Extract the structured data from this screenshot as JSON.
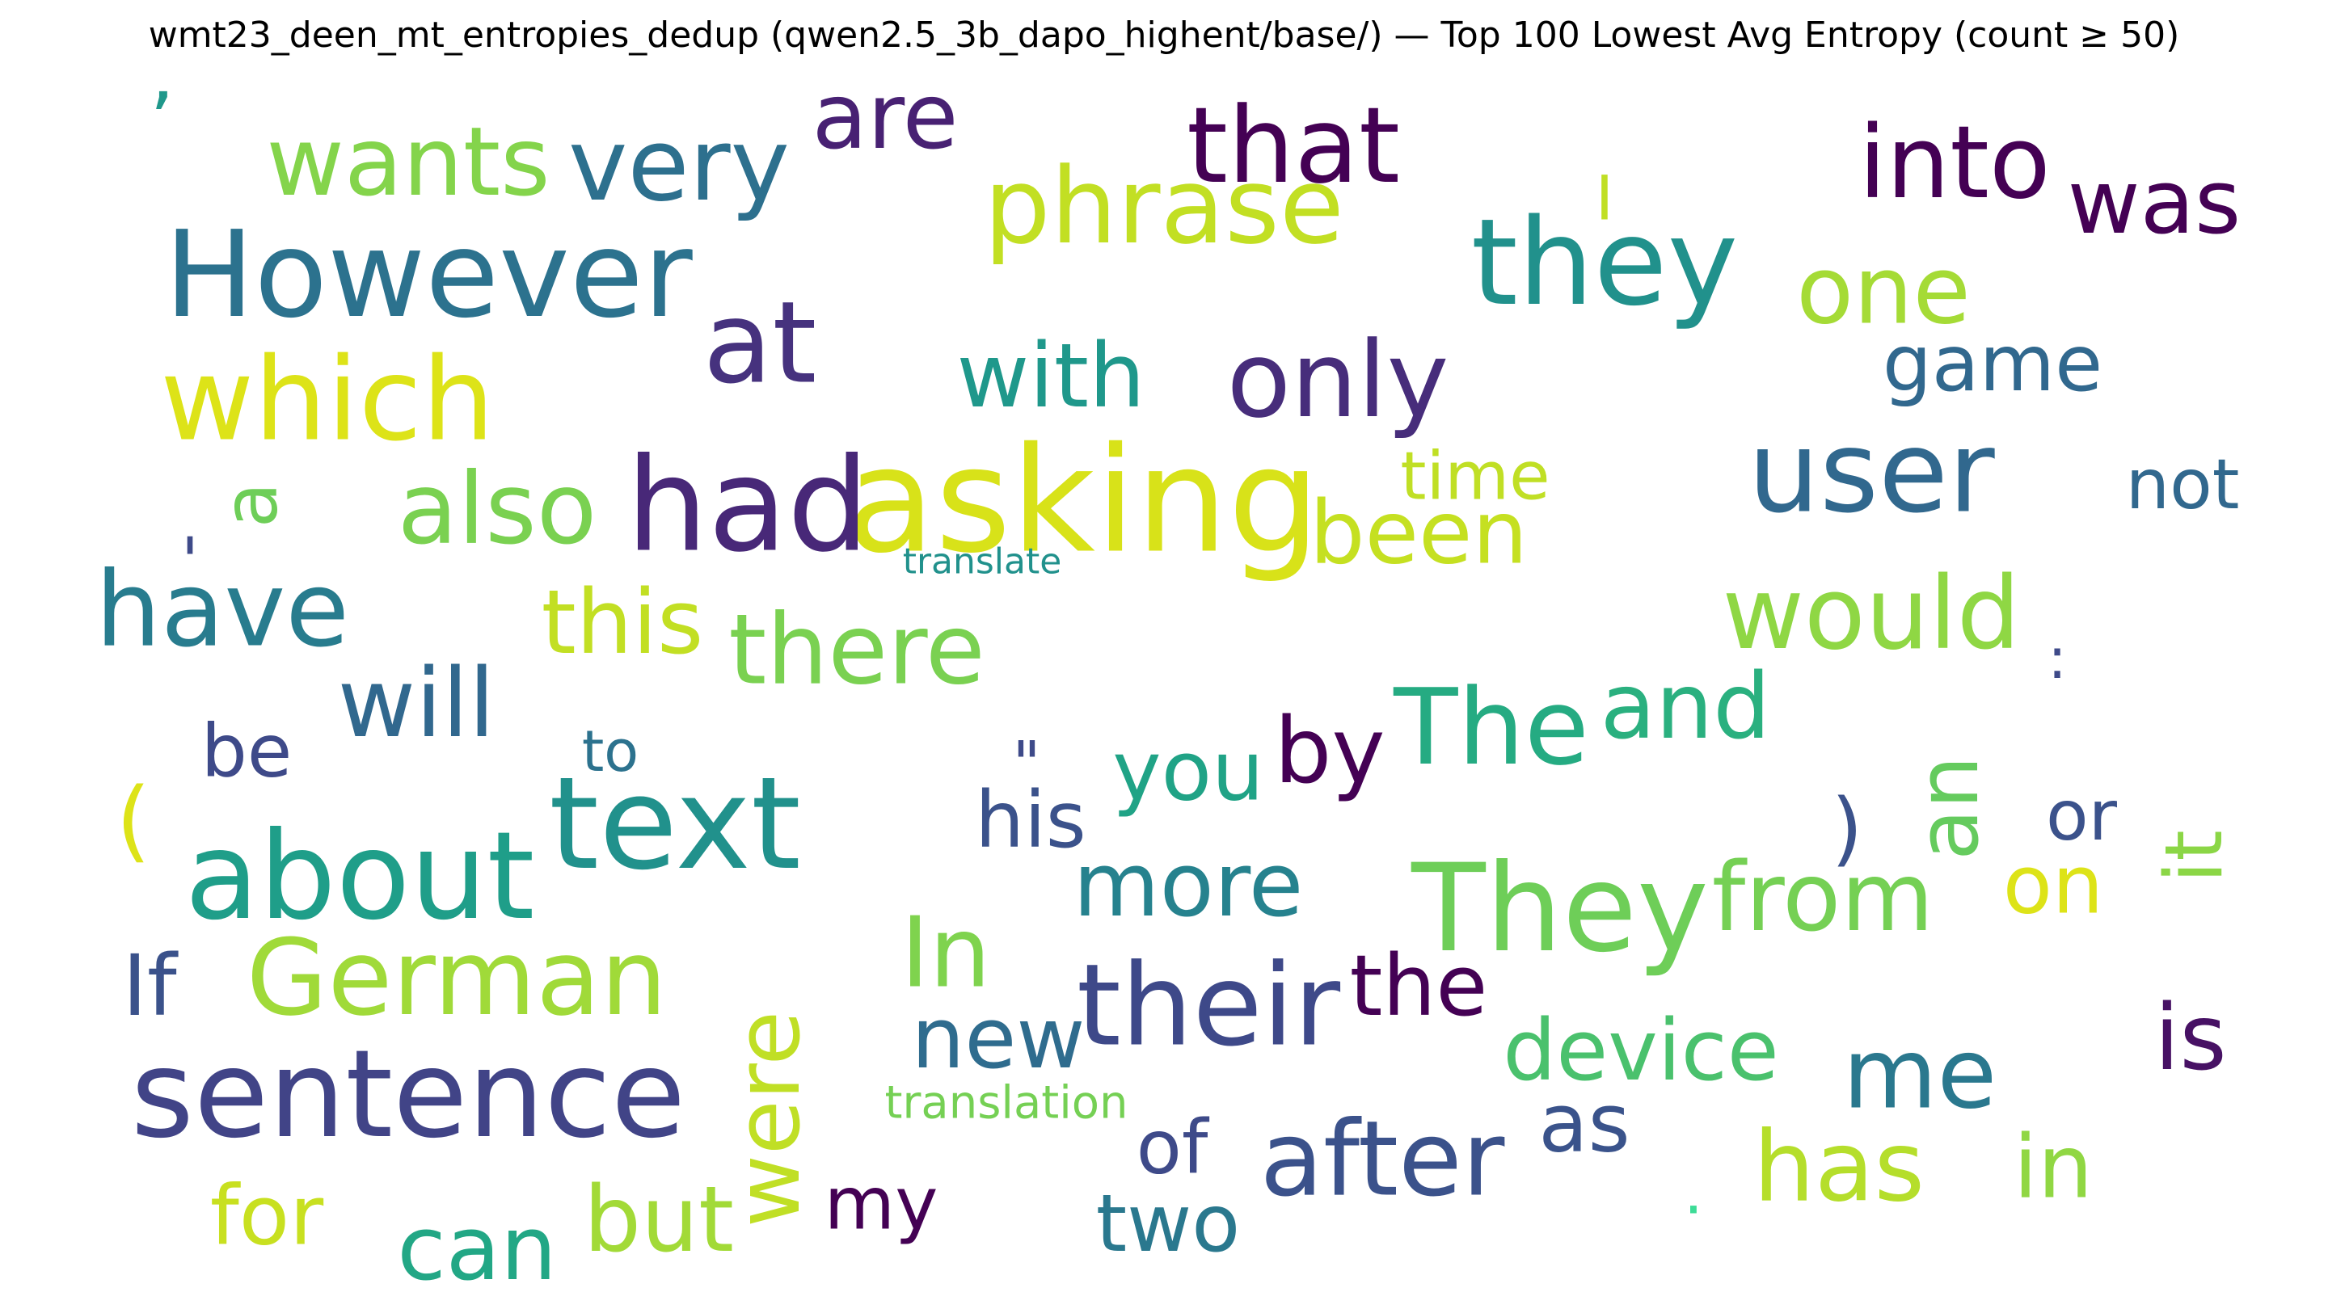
{
  "chart_data": {
    "type": "wordcloud",
    "title": "wmt23_deen_mt_entropies_dedup (qwen2.5_3b_dapo_highent/base/) — Top 100 Lowest Avg Entropy (count ≥ 50)",
    "colormap": "viridis",
    "words": [
      {
        "text": "asking",
        "weight": 100,
        "color": "#d8e219"
      },
      {
        "text": "sentence",
        "weight": 98,
        "color": "#414487"
      },
      {
        "text": "However",
        "weight": 94,
        "color": "#2c728e"
      },
      {
        "text": "text",
        "weight": 94,
        "color": "#21918c"
      },
      {
        "text": "about",
        "weight": 92,
        "color": "#1f9e89"
      },
      {
        "text": "They",
        "weight": 92,
        "color": "#6ece58"
      },
      {
        "text": "their",
        "weight": 90,
        "color": "#3e4989"
      },
      {
        "text": "they",
        "weight": 90,
        "color": "#21918c"
      },
      {
        "text": "had",
        "weight": 90,
        "color": "#482878"
      },
      {
        "text": "user",
        "weight": 88,
        "color": "#31688e"
      },
      {
        "text": "which",
        "weight": 88,
        "color": "#dde318"
      },
      {
        "text": "German",
        "weight": 86,
        "color": "#a0da39"
      },
      {
        "text": "phrase",
        "weight": 86,
        "color": "#c2df23"
      },
      {
        "text": "that",
        "weight": 84,
        "color": "#440154"
      },
      {
        "text": "after",
        "weight": 82,
        "color": "#3b528b"
      },
      {
        "text": "at",
        "weight": 80,
        "color": "#46327e"
      },
      {
        "text": "into",
        "weight": 80,
        "color": "#440154"
      },
      {
        "text": "The",
        "weight": 80,
        "color": "#25ab82"
      },
      {
        "text": "only",
        "weight": 80,
        "color": "#472d7b"
      },
      {
        "text": "would",
        "weight": 80,
        "color": "#8fd744"
      },
      {
        "text": "very",
        "weight": 78,
        "color": "#2d708e"
      },
      {
        "text": "have",
        "weight": 78,
        "color": "#287c8e"
      },
      {
        "text": "wants",
        "weight": 78,
        "color": "#84d44b"
      },
      {
        "text": "there",
        "weight": 78,
        "color": "#7ad151"
      },
      {
        "text": "were",
        "weight": 76,
        "color": "#c0df25"
      },
      {
        "text": "me",
        "weight": 76,
        "color": "#2a788e"
      },
      {
        "text": "In",
        "weight": 76,
        "color": "#7fd34e"
      },
      {
        "text": "also",
        "weight": 74,
        "color": "#7ad151"
      },
      {
        "text": "more",
        "weight": 74,
        "color": "#26828e"
      },
      {
        "text": "with",
        "weight": 74,
        "color": "#1f988b"
      },
      {
        "text": "from",
        "weight": 74,
        "color": "#75d054"
      },
      {
        "text": "has",
        "weight": 72,
        "color": "#b5de2b"
      },
      {
        "text": "one",
        "weight": 72,
        "color": "#a5db36"
      },
      {
        "text": "was",
        "weight": 72,
        "color": "#440154"
      },
      {
        "text": "will",
        "weight": 72,
        "color": "#31688e"
      },
      {
        "text": "device",
        "weight": 70,
        "color": "#4ac16d"
      },
      {
        "text": "been",
        "weight": 70,
        "color": "#c5e021"
      },
      {
        "text": "new",
        "weight": 70,
        "color": "#2f6c8e"
      },
      {
        "text": "and",
        "weight": 70,
        "color": "#2ab07f"
      },
      {
        "text": "are",
        "weight": 70,
        "color": "#482173"
      },
      {
        "text": "but",
        "weight": 68,
        "color": "#a2da37"
      },
      {
        "text": "can",
        "weight": 68,
        "color": "#22a785"
      },
      {
        "text": "this",
        "weight": 68,
        "color": "#c2df23"
      },
      {
        "text": "If",
        "weight": 68,
        "color": "#3b528b"
      },
      {
        "text": "is",
        "weight": 68,
        "color": "#471164"
      },
      {
        "text": "in",
        "weight": 68,
        "color": "#90d743"
      },
      {
        "text": "the",
        "weight": 68,
        "color": "#440154"
      },
      {
        "text": "an",
        "weight": 66,
        "color": "#65cb5e"
      },
      {
        "text": "it",
        "weight": 64,
        "color": "#8bd646"
      },
      {
        "text": "for",
        "weight": 64,
        "color": "#c8e020"
      },
      {
        "text": "you",
        "weight": 64,
        "color": "#20a386"
      },
      {
        "text": "by",
        "weight": 64,
        "color": "#440154"
      },
      {
        "text": "on",
        "weight": 62,
        "color": "#dde318"
      },
      {
        "text": "game",
        "weight": 62,
        "color": "#31688e"
      },
      {
        "text": "as",
        "weight": 62,
        "color": "#3a538b"
      },
      {
        "text": "two",
        "weight": 62,
        "color": "#2a788e"
      },
      {
        "text": "his",
        "weight": 60,
        "color": "#3b528b"
      },
      {
        "text": "not",
        "weight": 60,
        "color": "#31688e"
      },
      {
        "text": "of",
        "weight": 60,
        "color": "#3e4a89"
      },
      {
        "text": "my",
        "weight": 58,
        "color": "#440154"
      },
      {
        "text": "or",
        "weight": 58,
        "color": "#3b528b"
      },
      {
        "text": "be",
        "weight": 58,
        "color": "#3e4a89"
      },
      {
        "text": "a",
        "weight": 56,
        "color": "#6ece58"
      },
      {
        "text": "time",
        "weight": 56,
        "color": "#c0df25"
      },
      {
        "text": "to",
        "weight": 54,
        "color": "#2c728e"
      },
      {
        "text": "I",
        "weight": 54,
        "color": "#c0df25"
      },
      {
        "text": "(",
        "weight": 54,
        "color": "#dde318"
      },
      {
        "text": ")",
        "weight": 50,
        "color": "#3b528b"
      },
      {
        "text": "\"",
        "weight": 50,
        "color": "#3e4a89"
      },
      {
        "text": "'",
        "weight": 50,
        "color": "#3e4a89"
      },
      {
        "text": "’",
        "weight": 50,
        "color": "#1f988b"
      },
      {
        "text": ":",
        "weight": 46,
        "color": "#3e4a89"
      },
      {
        "text": ".",
        "weight": 44,
        "color": "#3ddc97"
      },
      {
        "text": "translation",
        "weight": 40,
        "color": "#75d054"
      },
      {
        "text": "translate",
        "weight": 36,
        "color": "#21918c"
      }
    ]
  }
}
